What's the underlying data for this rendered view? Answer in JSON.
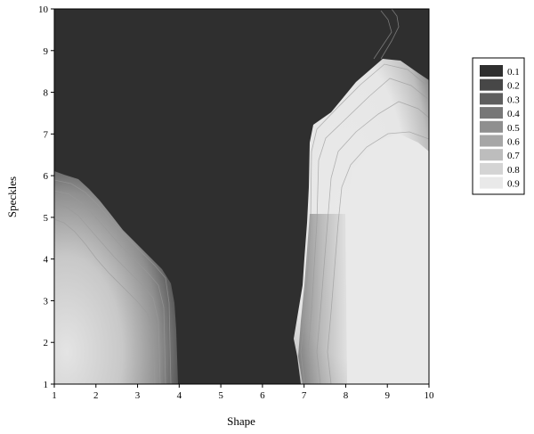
{
  "chart_data": {
    "type": "heatmap",
    "subtype": "filled-contour",
    "xlabel": "Shape",
    "ylabel": "Speckles",
    "xlim": [
      1,
      10
    ],
    "ylim": [
      1,
      10
    ],
    "x_ticks": [
      "1",
      "2",
      "3",
      "4",
      "5",
      "6",
      "7",
      "8",
      "9",
      "10"
    ],
    "y_ticks": [
      "1",
      "2",
      "3",
      "4",
      "5",
      "6",
      "7",
      "8",
      "9",
      "10"
    ],
    "grid": false,
    "colormap": "grayscale (dark = low, light = high)",
    "legend": {
      "position": "right",
      "levels": [
        {
          "label": "0.1",
          "color": "#2f2f2f"
        },
        {
          "label": "0.2",
          "color": "#474747"
        },
        {
          "label": "0.3",
          "color": "#5e5e5e"
        },
        {
          "label": "0.4",
          "color": "#777777"
        },
        {
          "label": "0.5",
          "color": "#8f8f8f"
        },
        {
          "label": "0.6",
          "color": "#a6a6a6"
        },
        {
          "label": "0.7",
          "color": "#bdbdbd"
        },
        {
          "label": "0.8",
          "color": "#d4d4d4"
        },
        {
          "label": "0.9",
          "color": "#e9e9e9"
        }
      ]
    },
    "regions": [
      {
        "value": 0.1,
        "description": "background; x 4 to 6.7 across all y, plus y above ~6 left and above ~8.5 right"
      },
      {
        "value": 0.9,
        "peak": [
          9,
          3
        ],
        "description": "high-value region, x 7.8 to 10, y 1 to 7"
      },
      {
        "value": 0.8,
        "peak": [
          1.5,
          1.5
        ],
        "description": "high-value region, x 1 to 3, y 1 to 3"
      }
    ]
  }
}
